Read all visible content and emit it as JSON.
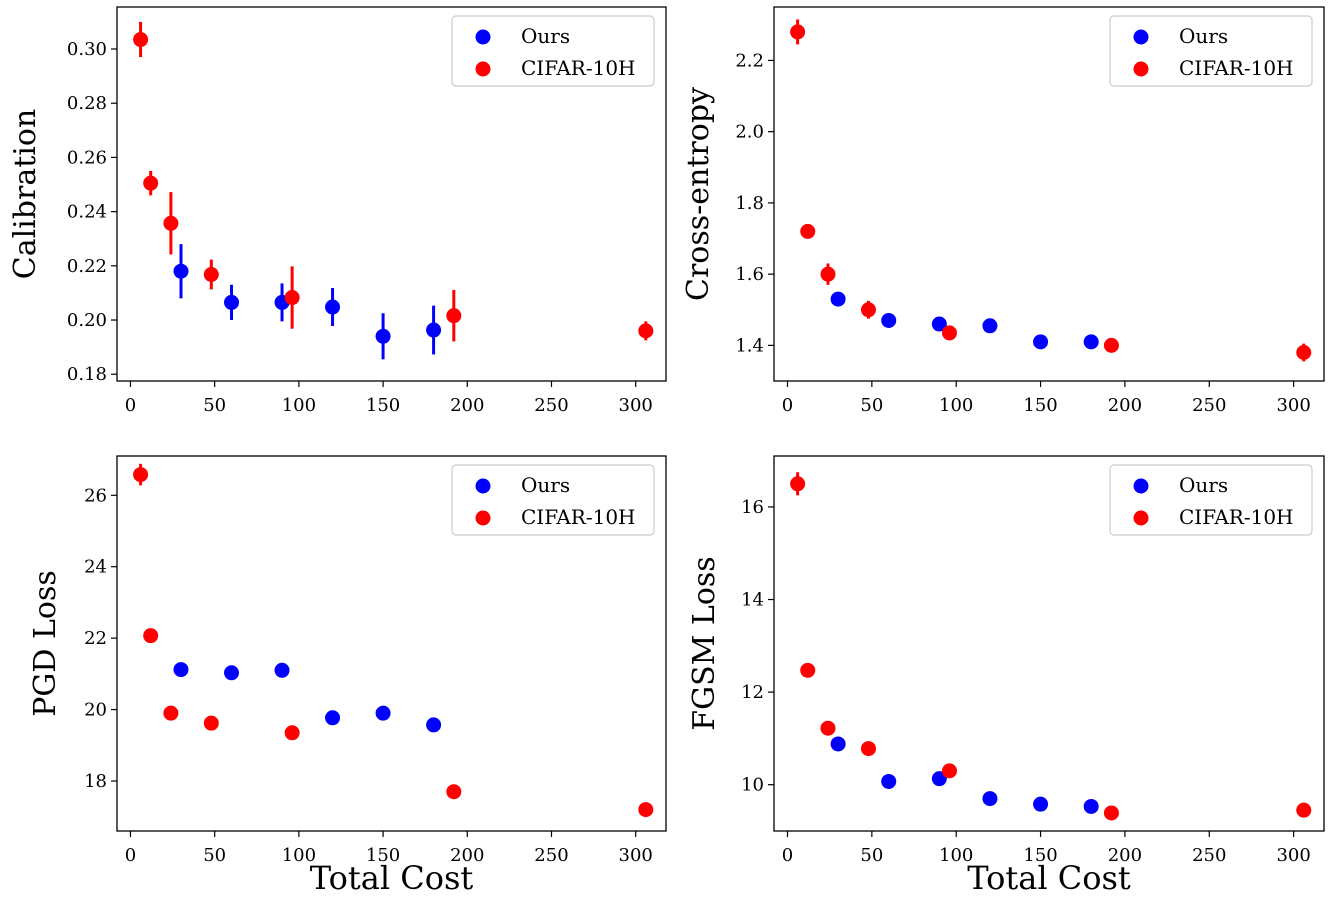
{
  "colors": {
    "ours": "#0000ff",
    "cifar": "#ff0000",
    "axis": "#000000",
    "legend_border": "#cccccc"
  },
  "legend_labels": [
    "Ours",
    "CIFAR-10H"
  ],
  "chart_data": [
    {
      "type": "scatter",
      "ylabel": "Calibration",
      "xlabel": "",
      "xlim": [
        -8,
        318
      ],
      "ylim": [
        0.1775,
        0.3155
      ],
      "xticks": [
        0,
        50,
        100,
        150,
        200,
        250,
        300
      ],
      "xtick_labels": [
        "0",
        "50",
        "100",
        "150",
        "200",
        "250",
        "300"
      ],
      "yticks": [
        0.18,
        0.2,
        0.22,
        0.24,
        0.26,
        0.28,
        0.3
      ],
      "ytick_labels": [
        "0.18",
        "0.20",
        "0.22",
        "0.24",
        "0.26",
        "0.28",
        "0.30"
      ],
      "legend_position": "upper right",
      "series": [
        {
          "name": "Ours",
          "color": "#0000ff",
          "x": [
            30,
            60,
            90,
            120,
            150,
            180
          ],
          "y": [
            0.218,
            0.2065,
            0.2065,
            0.2048,
            0.194,
            0.1963
          ],
          "err": [
            0.01,
            0.0065,
            0.007,
            0.007,
            0.0085,
            0.009
          ]
        },
        {
          "name": "CIFAR-10H",
          "color": "#ff0000",
          "x": [
            6,
            12,
            24,
            48,
            96,
            192,
            306
          ],
          "y": [
            0.3035,
            0.2505,
            0.2357,
            0.2168,
            0.2083,
            0.2016,
            0.196
          ],
          "err": [
            0.0065,
            0.0045,
            0.0115,
            0.0055,
            0.0115,
            0.0095,
            0.0035
          ]
        }
      ]
    },
    {
      "type": "scatter",
      "ylabel": "Cross-entropy",
      "xlabel": "",
      "xlim": [
        -8,
        318
      ],
      "ylim": [
        1.3,
        2.35
      ],
      "xticks": [
        0,
        50,
        100,
        150,
        200,
        250,
        300
      ],
      "xtick_labels": [
        "0",
        "50",
        "100",
        "150",
        "200",
        "250",
        "300"
      ],
      "yticks": [
        1.4,
        1.6,
        1.8,
        2.0,
        2.2
      ],
      "ytick_labels": [
        "1.4",
        "1.6",
        "1.8",
        "2.0",
        "2.2"
      ],
      "legend_position": "upper right",
      "series": [
        {
          "name": "Ours",
          "color": "#0000ff",
          "x": [
            30,
            60,
            90,
            120,
            150,
            180
          ],
          "y": [
            1.53,
            1.47,
            1.46,
            1.455,
            1.41,
            1.41
          ],
          "err": [
            0.01,
            0.015,
            0.015,
            0.01,
            0.01,
            0.01
          ]
        },
        {
          "name": "CIFAR-10H",
          "color": "#ff0000",
          "x": [
            6,
            12,
            24,
            48,
            96,
            192,
            306
          ],
          "y": [
            2.28,
            1.72,
            1.6,
            1.5,
            1.435,
            1.4,
            1.38
          ],
          "err": [
            0.035,
            0.015,
            0.03,
            0.025,
            0.01,
            0.015,
            0.025
          ]
        }
      ]
    },
    {
      "type": "scatter",
      "ylabel": "PGD Loss",
      "xlabel": "Total Cost",
      "xlim": [
        -8,
        318
      ],
      "ylim": [
        16.6,
        27.1
      ],
      "xticks": [
        0,
        50,
        100,
        150,
        200,
        250,
        300
      ],
      "xtick_labels": [
        "0",
        "50",
        "100",
        "150",
        "200",
        "250",
        "300"
      ],
      "yticks": [
        18,
        20,
        22,
        24,
        26
      ],
      "ytick_labels": [
        "18",
        "20",
        "22",
        "24",
        "26"
      ],
      "legend_position": "upper right",
      "series": [
        {
          "name": "Ours",
          "color": "#0000ff",
          "x": [
            30,
            60,
            90,
            120,
            150,
            180
          ],
          "y": [
            21.12,
            21.03,
            21.1,
            19.77,
            19.9,
            19.57
          ],
          "err": [
            0.1,
            0.1,
            0.1,
            0.1,
            0.1,
            0.1
          ]
        },
        {
          "name": "CIFAR-10H",
          "color": "#ff0000",
          "x": [
            6,
            12,
            24,
            48,
            96,
            192,
            306
          ],
          "y": [
            26.58,
            22.07,
            19.9,
            19.62,
            19.35,
            17.7,
            17.2
          ],
          "err": [
            0.3,
            0.1,
            0.2,
            0.15,
            0.1,
            0.1,
            0.2
          ]
        }
      ]
    },
    {
      "type": "scatter",
      "ylabel": "FGSM Loss",
      "xlabel": "Total Cost",
      "xlim": [
        -8,
        318
      ],
      "ylim": [
        9.0,
        17.1
      ],
      "xticks": [
        0,
        50,
        100,
        150,
        200,
        250,
        300
      ],
      "xtick_labels": [
        "0",
        "50",
        "100",
        "150",
        "200",
        "250",
        "300"
      ],
      "yticks": [
        10,
        12,
        14,
        16
      ],
      "ytick_labels": [
        "10",
        "12",
        "14",
        "16"
      ],
      "legend_position": "upper right",
      "series": [
        {
          "name": "Ours",
          "color": "#0000ff",
          "x": [
            30,
            60,
            90,
            120,
            150,
            180
          ],
          "y": [
            10.88,
            10.07,
            10.13,
            9.7,
            9.58,
            9.53
          ],
          "err": [
            0.08,
            0.08,
            0.1,
            0.08,
            0.08,
            0.08
          ]
        },
        {
          "name": "CIFAR-10H",
          "color": "#ff0000",
          "x": [
            6,
            12,
            24,
            48,
            96,
            192,
            306
          ],
          "y": [
            16.5,
            12.47,
            11.22,
            10.78,
            10.3,
            9.39,
            9.45
          ],
          "err": [
            0.25,
            0.1,
            0.12,
            0.1,
            0.08,
            0.08,
            0.08
          ]
        }
      ]
    }
  ]
}
